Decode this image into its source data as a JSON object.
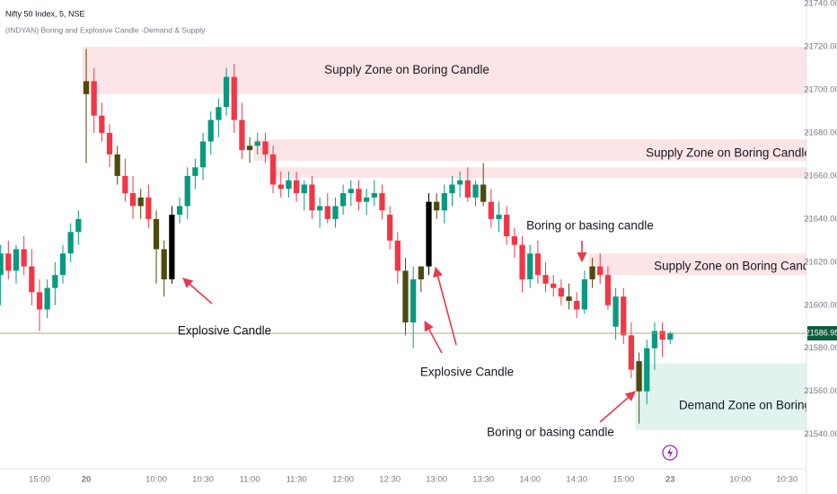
{
  "chart_data": {
    "type": "candlestick",
    "title": "Nifty 50 Index, 5, NSE",
    "subtitle": "(INDYAN) Boring and Explosive Candle -Demand & Supply",
    "categories": [
      null,
      null,
      null,
      null,
      null,
      "15:00",
      null,
      null,
      null,
      null,
      null,
      "20",
      null,
      null,
      null,
      null,
      null,
      null,
      null,
      null,
      "10:00",
      null,
      null,
      null,
      null,
      null,
      "10:30",
      null,
      null,
      null,
      null,
      null,
      "11:00",
      null,
      null,
      null,
      null,
      null,
      "11:30",
      null,
      null,
      null,
      null,
      null,
      "12:00",
      null,
      null,
      null,
      null,
      null,
      "12:30",
      null,
      null,
      null,
      null,
      null,
      "13:00",
      null,
      null,
      null,
      null,
      null,
      "13:30",
      null,
      null,
      null,
      null,
      null,
      "14:00",
      null,
      null,
      null,
      null,
      null,
      "14:30",
      null,
      null,
      null,
      null,
      null,
      "15:00",
      null,
      null,
      null,
      null,
      null,
      "23",
      null,
      null,
      null,
      null,
      null,
      null,
      null,
      null,
      "10:00",
      null,
      null,
      null,
      null,
      null,
      "10:30",
      null,
      null
    ],
    "open": [
      21614,
      21624,
      21616,
      21626,
      21618,
      21606,
      21598,
      21608,
      21614,
      21624,
      21634,
      21698,
      21704,
      21688,
      21680,
      21670,
      21660,
      21652,
      21646,
      21650,
      21640,
      21626,
      21612,
      21642,
      21646,
      21660,
      21664,
      21676,
      21686,
      21692,
      21706,
      21686,
      21672,
      21674,
      21676,
      21670,
      21656,
      21654,
      21658,
      21652,
      21656,
      21644,
      21646,
      21640,
      21646,
      21652,
      21654,
      21648,
      21650,
      21652,
      21642,
      21630,
      21616,
      21592,
      21612,
      21618,
      21648,
      21644,
      21652,
      21656,
      21658,
      21650,
      21656,
      21648,
      21640,
      21642,
      21632,
      21628,
      21612,
      21624,
      21614,
      21610,
      21608,
      21604,
      21602,
      21598,
      21612,
      21618,
      21614,
      21590,
      21604,
      21586,
      21574,
      21560,
      21580,
      21588,
      21584,
      null,
      null,
      null,
      null,
      null,
      null,
      null,
      null,
      null,
      null,
      null,
      null,
      null,
      null,
      null,
      null,
      null
    ],
    "high": [
      21628,
      21630,
      21628,
      21632,
      21626,
      21612,
      21612,
      21620,
      21628,
      21638,
      21644,
      21719,
      21710,
      21694,
      21684,
      21674,
      21668,
      21660,
      21654,
      21656,
      21644,
      21630,
      21646,
      21650,
      21664,
      21668,
      21680,
      21690,
      21696,
      21710,
      21712,
      21694,
      21678,
      21680,
      21680,
      21674,
      21662,
      21662,
      21662,
      21658,
      21660,
      21650,
      21652,
      21650,
      21656,
      21658,
      21658,
      21654,
      21658,
      21656,
      21646,
      21634,
      21622,
      21618,
      21618,
      21652,
      21652,
      21656,
      21660,
      21662,
      21664,
      21658,
      21666,
      21654,
      21648,
      21646,
      21636,
      21632,
      21628,
      21630,
      21620,
      21614,
      21612,
      21610,
      21606,
      21616,
      21622,
      21624,
      21618,
      21608,
      21608,
      21592,
      21578,
      21584,
      21592,
      21592,
      21588,
      null,
      null,
      null,
      null,
      null,
      null,
      null,
      null,
      null,
      null,
      null,
      null,
      null,
      null,
      null,
      null,
      null
    ],
    "low": [
      21600,
      21612,
      21610,
      21614,
      21600,
      21588,
      21594,
      21600,
      21610,
      21620,
      21628,
      21666,
      21680,
      21676,
      21664,
      21656,
      21648,
      21640,
      21640,
      21636,
      21610,
      21604,
      21610,
      21638,
      21640,
      21654,
      21658,
      21670,
      21678,
      21688,
      21680,
      21668,
      21666,
      21670,
      21666,
      21652,
      21650,
      21650,
      21648,
      21644,
      21640,
      21636,
      21638,
      21636,
      21642,
      21646,
      21644,
      21642,
      21646,
      21640,
      21626,
      21610,
      21586,
      21580,
      21606,
      21614,
      21640,
      21638,
      21646,
      21650,
      21648,
      21646,
      21646,
      21636,
      21634,
      21628,
      21622,
      21606,
      21608,
      21610,
      21606,
      21604,
      21600,
      21598,
      21594,
      21596,
      21608,
      21610,
      21598,
      21584,
      21582,
      21566,
      21545,
      21554,
      21570,
      21576,
      21582,
      null,
      null,
      null,
      null,
      null,
      null,
      null,
      null,
      null,
      null,
      null,
      null,
      null,
      null,
      null,
      null,
      null
    ],
    "close": [
      21624,
      21616,
      21626,
      21618,
      21606,
      21598,
      21608,
      21614,
      21624,
      21634,
      21640,
      21704,
      21688,
      21680,
      21670,
      21660,
      21652,
      21646,
      21650,
      21640,
      21626,
      21612,
      21642,
      21646,
      21660,
      21664,
      21676,
      21686,
      21692,
      21706,
      21686,
      21672,
      21674,
      21676,
      21670,
      21656,
      21654,
      21658,
      21652,
      21656,
      21644,
      21646,
      21640,
      21646,
      21652,
      21654,
      21648,
      21650,
      21652,
      21644,
      21630,
      21616,
      21592,
      21612,
      21618,
      21648,
      21644,
      21652,
      21656,
      21658,
      21650,
      21656,
      21648,
      21640,
      21642,
      21632,
      21628,
      21612,
      21624,
      21614,
      21610,
      21608,
      21604,
      21602,
      21598,
      21612,
      21618,
      21614,
      21600,
      21604,
      21586,
      21570,
      21560,
      21580,
      21588,
      21584,
      21586.95,
      null,
      null,
      null,
      null,
      null,
      null,
      null,
      null,
      null,
      null,
      null,
      null,
      null,
      null,
      null,
      null,
      null
    ],
    "up_color": "#089981",
    "down_color": "#f23645",
    "boring_color": "#4e4a0c",
    "explosive_color": "#000000",
    "boring": [
      11,
      15,
      18,
      20,
      21,
      32,
      52,
      54,
      56,
      62,
      73,
      76,
      82
    ],
    "explosive": [
      22,
      55
    ],
    "ylim": [
      21524,
      21741.7
    ],
    "yticks": [
      {
        "value": 21540,
        "label": "21540.00"
      },
      {
        "value": 21560,
        "label": "21560.00"
      },
      {
        "value": 21580,
        "label": "21580.00"
      },
      {
        "value": 21600,
        "label": "21600.00"
      },
      {
        "value": 21620,
        "label": "21620.00"
      },
      {
        "value": 21640,
        "label": "21640.00"
      },
      {
        "value": 21660,
        "label": "21660.00"
      },
      {
        "value": 21680,
        "label": "21680.00"
      },
      {
        "value": 21700,
        "label": "21700.00"
      },
      {
        "value": 21720,
        "label": "21720.00"
      },
      {
        "value": 21740,
        "label": "21740.00"
      }
    ],
    "zones": [
      {
        "label": "Supply Zone on Boring Candle",
        "from": 11,
        "top": 21720,
        "bottom": 21698,
        "color": "#fde4e7"
      },
      {
        "label": "Supply Zone on Boring Candle",
        "from": 33,
        "top": 21677,
        "bottom": 21667,
        "color": "#fde4e7"
      },
      {
        "from": 35,
        "top": 21664,
        "bottom": 21659,
        "color": "#fde4e7"
      },
      {
        "label": "Supply Zone on Boring Candle",
        "from": 76,
        "top": 21624,
        "bottom": 21614,
        "color": "#fde4e7"
      },
      {
        "label": "Demand Zone on Boring Ca",
        "from": 82,
        "top": 21573,
        "bottom": 21542,
        "color": "#e1f3ef"
      }
    ],
    "annotations": [
      "Explosive Candle",
      "Explosive Candle",
      "Boring or basing candle",
      "Boring or basing candle"
    ]
  }
}
